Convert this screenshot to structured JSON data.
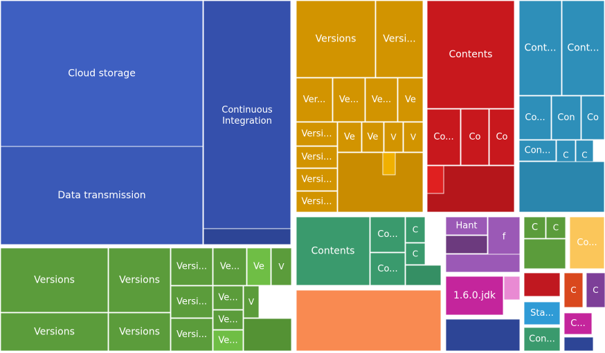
{
  "chart_data": {
    "type": "treemap",
    "colors": {
      "blue": "#3e5fc1",
      "blue2": "#3a59b7",
      "blue3": "#3550ac",
      "gold": "#d29400",
      "gold2": "#c98c00",
      "gold_hi": "#f0b000",
      "red": "#c8181d",
      "red2": "#b5161b",
      "red_hi": "#e02020",
      "teal": "#2e8fb9",
      "teal2": "#2a86ad",
      "green": "#5b9c3b",
      "green2": "#549234",
      "green_hi": "#6fbe45",
      "sea": "#3a9a6d",
      "sea2": "#358f64",
      "orange": "#f98a51",
      "purple": "#9b59b6",
      "purple2": "#6c3a7e",
      "magenta": "#c4259c",
      "pink": "#e98ad3",
      "navy": "#2d4596",
      "navy2": "#3d5fc1",
      "lgreen": "#5b9c3b",
      "yellow": "#fbc65a",
      "sky": "#2f9bd6",
      "dred": "#c01820",
      "rorange": "#d9481e",
      "violet": "#7d3f98"
    },
    "groups": [
      {
        "name": "blue",
        "tiles": [
          {
            "label": "Cloud storage",
            "value": 61560,
            "color": "blue"
          },
          {
            "label": "Data transmission",
            "value": 41800,
            "color": "blue2"
          },
          {
            "label": "Continuous Integration",
            "value": 41150,
            "color": "blue3"
          },
          {
            "label": "",
            "value": 3100,
            "color": "navy"
          }
        ]
      },
      {
        "name": "gold",
        "tiles": [
          {
            "label": "Versions",
            "value": 13000,
            "color": "gold"
          },
          {
            "label": "Versi...",
            "value": 7700,
            "color": "gold"
          },
          {
            "label": "Ver...",
            "value": 3400,
            "color": "gold"
          },
          {
            "label": "Ve...",
            "value": 3000,
            "color": "gold"
          },
          {
            "label": "Ve...",
            "value": 3000,
            "color": "gold"
          },
          {
            "label": "Ve",
            "value": 2400,
            "color": "gold"
          },
          {
            "label": "Versi...",
            "value": 1900,
            "color": "gold"
          },
          {
            "label": "Ve",
            "value": 1400,
            "color": "gold"
          },
          {
            "label": "Ve",
            "value": 1100,
            "color": "gold"
          },
          {
            "label": "V",
            "value": 1000,
            "color": "gold"
          },
          {
            "label": "V",
            "value": 900,
            "color": "gold"
          },
          {
            "label": "Versi...",
            "value": 1900,
            "color": "gold"
          },
          {
            "label": "Versi...",
            "value": 1900,
            "color": "gold"
          },
          {
            "label": "Versi...",
            "value": 1900,
            "color": "gold"
          },
          {
            "label": "",
            "value": 3200,
            "color": "gold2"
          },
          {
            "label": "",
            "value": 2500,
            "color": "gold_hi"
          }
        ]
      },
      {
        "name": "red",
        "tiles": [
          {
            "label": "Contents",
            "value": 20000,
            "color": "red"
          },
          {
            "label": "Co...",
            "value": 4000,
            "color": "red"
          },
          {
            "label": "Co",
            "value": 3200,
            "color": "red"
          },
          {
            "label": "Co",
            "value": 3000,
            "color": "red"
          },
          {
            "label": "",
            "value": 4800,
            "color": "red2"
          },
          {
            "label": "",
            "value": 1500,
            "color": "red_hi"
          }
        ]
      },
      {
        "name": "teal",
        "tiles": [
          {
            "label": "Cont...",
            "value": 7000,
            "color": "teal"
          },
          {
            "label": "Cont...",
            "value": 8000,
            "color": "teal"
          },
          {
            "label": "Co...",
            "value": 2900,
            "color": "teal"
          },
          {
            "label": "Con",
            "value": 2600,
            "color": "teal"
          },
          {
            "label": "Co",
            "value": 2200,
            "color": "teal"
          },
          {
            "label": "Con...",
            "value": 1700,
            "color": "teal"
          },
          {
            "label": "C",
            "value": 1000,
            "color": "teal"
          },
          {
            "label": "C",
            "value": 900,
            "color": "teal"
          },
          {
            "label": "",
            "value": 5300,
            "color": "teal2"
          }
        ]
      },
      {
        "name": "green",
        "tiles": [
          {
            "label": "Versions",
            "value": 14600,
            "color": "green"
          },
          {
            "label": "Versions",
            "value": 8600,
            "color": "green"
          },
          {
            "label": "Versions",
            "value": 12900,
            "color": "green"
          },
          {
            "label": "Versions",
            "value": 7600,
            "color": "green"
          },
          {
            "label": "Versi...",
            "value": 3300,
            "color": "green"
          },
          {
            "label": "Ve...",
            "value": 2600,
            "color": "green"
          },
          {
            "label": "Ve",
            "value": 1500,
            "color": "green_hi"
          },
          {
            "label": "V",
            "value": 1200,
            "color": "green"
          },
          {
            "label": "Versi...",
            "value": 2500,
            "color": "green"
          },
          {
            "label": "Ve...",
            "value": 1500,
            "color": "green"
          },
          {
            "label": "V",
            "value": 1400,
            "color": "green"
          },
          {
            "label": "Ve...",
            "value": 1100,
            "color": "green"
          },
          {
            "label": "Versi...",
            "value": 2800,
            "color": "green"
          },
          {
            "label": "Ve...",
            "value": 1300,
            "color": "green_hi"
          },
          {
            "label": "",
            "value": 3000,
            "color": "green2"
          }
        ]
      },
      {
        "name": "sea",
        "tiles": [
          {
            "label": "Contents",
            "value": 11000,
            "color": "sea"
          },
          {
            "label": "Co...",
            "value": 2300,
            "color": "sea"
          },
          {
            "label": "Co...",
            "value": 2300,
            "color": "sea"
          },
          {
            "label": "C",
            "value": 1100,
            "color": "sea"
          },
          {
            "label": "C",
            "value": 1100,
            "color": "sea"
          },
          {
            "label": "",
            "value": 2100,
            "color": "sea2"
          }
        ]
      },
      {
        "name": "orange",
        "tiles": [
          {
            "label": "",
            "value": 18000,
            "color": "orange"
          }
        ]
      },
      {
        "name": "purple",
        "tiles": [
          {
            "label": "Hant",
            "value": 2000,
            "color": "purple"
          },
          {
            "label": "f",
            "value": 1900,
            "color": "purple"
          },
          {
            "label": "",
            "value": 1600,
            "color": "purple2"
          },
          {
            "label": "",
            "value": 1900,
            "color": "purple"
          }
        ]
      },
      {
        "name": "magenta",
        "tiles": [
          {
            "label": "1.6.0.jdk",
            "value": 4300,
            "color": "magenta"
          },
          {
            "label": "",
            "value": 900,
            "color": "pink"
          }
        ]
      },
      {
        "name": "navy",
        "tiles": [
          {
            "label": "",
            "value": 4200,
            "color": "navy"
          }
        ]
      },
      {
        "name": "lgreen",
        "tiles": [
          {
            "label": "C",
            "value": 800,
            "color": "lgreen"
          },
          {
            "label": "C",
            "value": 800,
            "color": "lgreen"
          },
          {
            "label": "",
            "value": 2700,
            "color": "lgreen"
          }
        ]
      },
      {
        "name": "yellow",
        "tiles": [
          {
            "label": "Co...",
            "value": 3900,
            "color": "yellow"
          }
        ]
      },
      {
        "name": "misc",
        "tiles": [
          {
            "label": "C",
            "value": 1100,
            "color": "rorange"
          },
          {
            "label": "C",
            "value": 1100,
            "color": "violet"
          },
          {
            "label": "",
            "value": 1700,
            "color": "dred"
          },
          {
            "label": "Sta...",
            "value": 1700,
            "color": "sky"
          },
          {
            "label": "C...",
            "value": 1200,
            "color": "magenta"
          },
          {
            "label": "Con...",
            "value": 1700,
            "color": "sea"
          },
          {
            "label": "",
            "value": 900,
            "color": "navy"
          }
        ]
      }
    ]
  }
}
